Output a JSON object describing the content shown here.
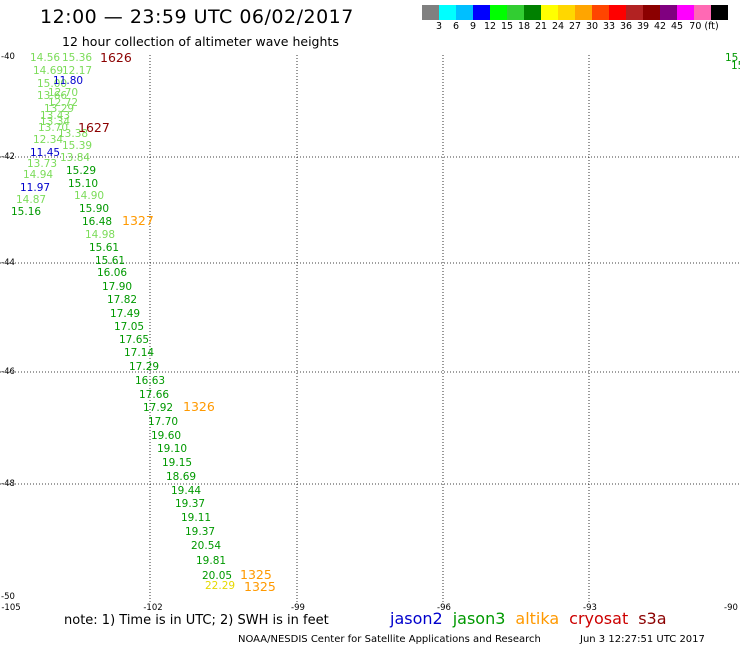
{
  "header": {
    "title": "12:00 — 23:59 UTC 06/02/2017",
    "subtitle": "12 hour collection of altimeter wave heights"
  },
  "colorbar": {
    "colors": [
      "#808080",
      "#00ffff",
      "#00bfff",
      "#0000ff",
      "#00ff00",
      "#32cd32",
      "#008000",
      "#ffff00",
      "#ffd700",
      "#ffa500",
      "#ff4500",
      "#ff0000",
      "#b22222",
      "#8b0000",
      "#800080",
      "#ff00ff",
      "#ff69b4",
      "#000000"
    ],
    "labels": [
      "3",
      "6",
      "9",
      "12",
      "15",
      "18",
      "21",
      "24",
      "27",
      "30",
      "33",
      "36",
      "39",
      "42",
      "45",
      "70 (ft)"
    ]
  },
  "axes": {
    "lat_labels": [
      "-40",
      "-42",
      "-44",
      "-46",
      "-48",
      "-50"
    ],
    "lon_labels": [
      "-105",
      "-102",
      "-99",
      "-96",
      "-93",
      "-90"
    ],
    "lon_range": [
      -105,
      -90
    ],
    "lat_range": [
      -50,
      -40
    ]
  },
  "points": [
    {
      "text": "14.56",
      "color": "#7cdc5a"
    },
    {
      "text": "15.36",
      "color": "#7cdc5a"
    },
    {
      "text": "14.69",
      "color": "#7cdc5a"
    },
    {
      "text": "12.17",
      "color": "#7cdc5a"
    },
    {
      "text": "15.00",
      "color": "#7cdc5a"
    },
    {
      "text": "11.80",
      "color": "#0000cc"
    },
    {
      "text": "13.66",
      "color": "#7cdc5a"
    },
    {
      "text": "12.70",
      "color": "#7cdc5a"
    },
    {
      "text": "12.72",
      "color": "#7cdc5a"
    },
    {
      "text": "13.29",
      "color": "#7cdc5a"
    },
    {
      "text": "13.43",
      "color": "#7cdc5a"
    },
    {
      "text": "13.34",
      "color": "#7cdc5a"
    },
    {
      "text": "13.70",
      "color": "#7cdc5a"
    },
    {
      "text": "13.38",
      "color": "#7cdc5a"
    },
    {
      "text": "12.34",
      "color": "#7cdc5a"
    },
    {
      "text": "15.39",
      "color": "#7cdc5a"
    },
    {
      "text": "11.45",
      "color": "#0000cc"
    },
    {
      "text": "13.73",
      "color": "#7cdc5a"
    },
    {
      "text": "13.84",
      "color": "#7cdc5a"
    },
    {
      "text": "15.29",
      "color": "#009900"
    },
    {
      "text": "14.94",
      "color": "#7cdc5a"
    },
    {
      "text": "11.97",
      "color": "#0000cc"
    },
    {
      "text": "15.10",
      "color": "#009900"
    },
    {
      "text": "14.87",
      "color": "#7cdc5a"
    },
    {
      "text": "14.90",
      "color": "#7cdc5a"
    },
    {
      "text": "15.16",
      "color": "#009900"
    },
    {
      "text": "15.90",
      "color": "#009900"
    },
    {
      "text": "16.48",
      "color": "#009900"
    },
    {
      "text": "14.98",
      "color": "#7cdc5a"
    },
    {
      "text": "15.61",
      "color": "#009900"
    },
    {
      "text": "15.61",
      "color": "#009900"
    },
    {
      "text": "16.06",
      "color": "#009900"
    },
    {
      "text": "17.90",
      "color": "#009900"
    },
    {
      "text": "17.82",
      "color": "#009900"
    },
    {
      "text": "17.49",
      "color": "#009900"
    },
    {
      "text": "17.05",
      "color": "#009900"
    },
    {
      "text": "17.65",
      "color": "#009900"
    },
    {
      "text": "17.14",
      "color": "#009900"
    },
    {
      "text": "17.29",
      "color": "#009900"
    },
    {
      "text": "16.63",
      "color": "#009900"
    },
    {
      "text": "17.66",
      "color": "#009900"
    },
    {
      "text": "17.92",
      "color": "#009900"
    },
    {
      "text": "17.70",
      "color": "#009900"
    },
    {
      "text": "19.60",
      "color": "#009900"
    },
    {
      "text": "19.10",
      "color": "#009900"
    },
    {
      "text": "19.15",
      "color": "#009900"
    },
    {
      "text": "18.69",
      "color": "#009900"
    },
    {
      "text": "19.44",
      "color": "#009900"
    },
    {
      "text": "19.37",
      "color": "#009900"
    },
    {
      "text": "19.11",
      "color": "#009900"
    },
    {
      "text": "19.37",
      "color": "#009900"
    },
    {
      "text": "20.54",
      "color": "#009900"
    },
    {
      "text": "19.81",
      "color": "#009900"
    },
    {
      "text": "20.05",
      "color": "#009900"
    },
    {
      "text": "22.29",
      "color": "#e6d800"
    },
    {
      "text": "15",
      "color": "#009900"
    },
    {
      "text": "15",
      "color": "#009900"
    }
  ],
  "track_labels": [
    {
      "text": "1626",
      "color": "#8b0000"
    },
    {
      "text": "1627",
      "color": "#8b0000"
    },
    {
      "text": "1327",
      "color": "#ff9900"
    },
    {
      "text": "1326",
      "color": "#ff9900"
    },
    {
      "text": "1325",
      "color": "#ff9900"
    },
    {
      "text": "1325",
      "color": "#ff9900"
    }
  ],
  "footer": {
    "note": "note:  1) Time is in UTC;  2) SWH is in feet",
    "legend": [
      {
        "text": "jason2",
        "color": "#0000cc"
      },
      {
        "text": "jason3",
        "color": "#009900"
      },
      {
        "text": "altika",
        "color": "#ff9900"
      },
      {
        "text": "cryosat",
        "color": "#cc0000"
      },
      {
        "text": "s3a",
        "color": "#8b0000"
      }
    ],
    "credit": "NOAA/NESDIS Center for Satellite Applications and Research",
    "timestamp": "Jun  3 12:27:51 UTC 2017"
  }
}
